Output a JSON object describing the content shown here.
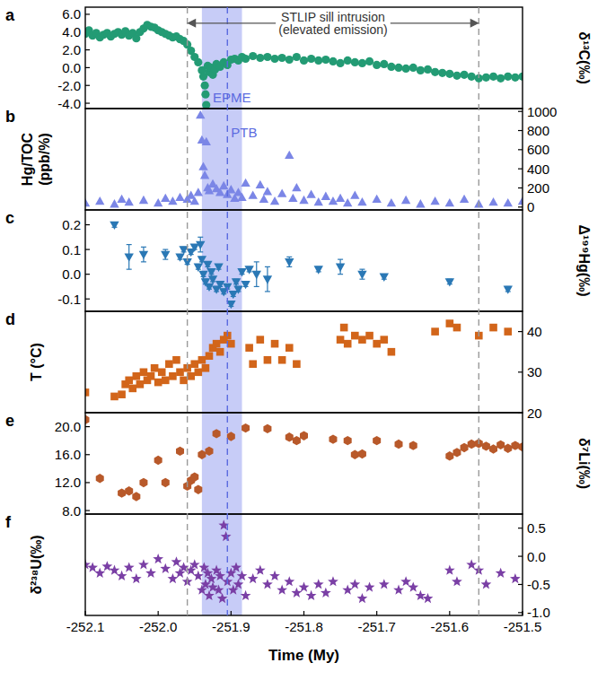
{
  "chart_data": [
    {
      "type": "scatter",
      "title": "a",
      "y_label": "δ¹³C(‰)",
      "color": "#239b74",
      "marker": "circle",
      "xlim": [
        -252.1,
        -251.5
      ],
      "ylim": [
        -4.6,
        6.8
      ],
      "yticks": [
        {
          "value": -4,
          "label": "-4.0"
        },
        {
          "value": -2,
          "label": "-2.0"
        },
        {
          "value": 0,
          "label": "0.0"
        },
        {
          "value": 2,
          "label": "2.0"
        },
        {
          "value": 4,
          "label": "4.0"
        },
        {
          "value": 6,
          "label": "6.0"
        }
      ],
      "band": [
        -251.94,
        -251.885
      ],
      "vlines": [
        -251.96,
        -251.56
      ],
      "boundary": -251.905,
      "annotations": [
        {
          "text": "STLIP sill intrusion",
          "x": -251.76,
          "y": 5.7
        },
        {
          "text": "(elevated emission)",
          "x": -251.76,
          "y": 4.3
        },
        {
          "text": "EPME",
          "x": -251.925,
          "y": -3.3
        }
      ],
      "x": [
        -252.1,
        -252.095,
        -252.09,
        -252.085,
        -252.08,
        -252.075,
        -252.07,
        -252.065,
        -252.06,
        -252.055,
        -252.05,
        -252.045,
        -252.04,
        -252.035,
        -252.03,
        -252.025,
        -252.02,
        -252.015,
        -252.01,
        -252.005,
        -252.0,
        -251.995,
        -251.99,
        -251.985,
        -251.98,
        -251.975,
        -251.97,
        -251.965,
        -251.96,
        -251.955,
        -251.95,
        -251.945,
        -251.94,
        -251.938,
        -251.936,
        -251.935,
        -251.934,
        -251.932,
        -251.93,
        -251.928,
        -251.925,
        -251.922,
        -251.92,
        -251.915,
        -251.91,
        -251.905,
        -251.9,
        -251.895,
        -251.89,
        -251.885,
        -251.88,
        -251.87,
        -251.86,
        -251.85,
        -251.84,
        -251.83,
        -251.82,
        -251.81,
        -251.8,
        -251.79,
        -251.78,
        -251.77,
        -251.76,
        -251.75,
        -251.74,
        -251.73,
        -251.72,
        -251.71,
        -251.7,
        -251.69,
        -251.68,
        -251.67,
        -251.66,
        -251.65,
        -251.64,
        -251.63,
        -251.62,
        -251.61,
        -251.6,
        -251.59,
        -251.58,
        -251.57,
        -251.56,
        -251.55,
        -251.54,
        -251.53,
        -251.52,
        -251.51,
        -251.5
      ],
      "values": [
        3.8,
        4.2,
        3.6,
        3.9,
        3.4,
        3.7,
        3.9,
        3.5,
        3.8,
        4.0,
        3.7,
        4.1,
        3.6,
        3.9,
        3.3,
        4.0,
        4.4,
        4.8,
        4.6,
        4.5,
        4.2,
        4.0,
        3.8,
        3.6,
        3.4,
        3.5,
        3.2,
        3.0,
        2.6,
        1.9,
        1.2,
        0.6,
        -0.3,
        -1.0,
        -2.0,
        -3.0,
        -4.2,
        0.2,
        -0.5,
        0.0,
        -0.8,
        -0.2,
        0.4,
        0.1,
        0.6,
        0.3,
        0.9,
        1.0,
        0.8,
        1.2,
        1.0,
        1.3,
        1.1,
        1.2,
        1.0,
        1.1,
        0.9,
        1.2,
        0.8,
        1.0,
        0.8,
        0.9,
        0.7,
        0.5,
        0.8,
        0.6,
        0.5,
        0.7,
        0.3,
        0.4,
        0.1,
        0.0,
        -0.1,
        0.0,
        -0.3,
        -0.2,
        -0.5,
        -0.6,
        -0.7,
        -0.9,
        -0.8,
        -1.0,
        -1.2,
        -1.1,
        -1.0,
        -1.2,
        -1.0,
        -1.1,
        -1.0
      ]
    },
    {
      "type": "scatter",
      "title": "b",
      "y_label": [
        "Hg/TOC",
        "(ppb/%)"
      ],
      "color": "#7b86e6",
      "marker": "triangle-up",
      "xlim": [
        -252.1,
        -251.5
      ],
      "ylim": [
        -30,
        1030
      ],
      "yticks": [
        0,
        200,
        400,
        600,
        800,
        1000
      ],
      "annotations": [
        {
          "text": "PTB",
          "x": -251.9,
          "y": 780
        }
      ],
      "x": [
        -252.1,
        -252.08,
        -252.06,
        -252.05,
        -252.04,
        -252.02,
        -252.0,
        -251.99,
        -251.98,
        -251.97,
        -251.96,
        -251.955,
        -251.95,
        -251.945,
        -251.942,
        -251.94,
        -251.938,
        -251.936,
        -251.934,
        -251.932,
        -251.93,
        -251.925,
        -251.92,
        -251.915,
        -251.91,
        -251.905,
        -251.9,
        -251.895,
        -251.89,
        -251.885,
        -251.88,
        -251.87,
        -251.86,
        -251.855,
        -251.85,
        -251.84,
        -251.83,
        -251.82,
        -251.815,
        -251.81,
        -251.8,
        -251.79,
        -251.78,
        -251.77,
        -251.76,
        -251.75,
        -251.74,
        -251.73,
        -251.72,
        -251.7,
        -251.68,
        -251.66,
        -251.64,
        -251.62,
        -251.6,
        -251.58,
        -251.56,
        -251.54,
        -251.52,
        -251.5
      ],
      "values": [
        40,
        60,
        30,
        80,
        50,
        70,
        40,
        90,
        60,
        100,
        80,
        120,
        60,
        150,
        960,
        700,
        420,
        330,
        680,
        200,
        170,
        240,
        190,
        150,
        220,
        130,
        180,
        90,
        150,
        100,
        250,
        120,
        230,
        80,
        160,
        60,
        140,
        540,
        90,
        200,
        70,
        130,
        50,
        110,
        60,
        90,
        40,
        120,
        50,
        80,
        40,
        70,
        30,
        60,
        40,
        80,
        30,
        50,
        40,
        60
      ]
    },
    {
      "type": "scatter",
      "title": "c",
      "y_label": "Δ¹⁹⁹Hg(‰)",
      "color": "#2a78b5",
      "marker": "triangle-down",
      "xlim": [
        -252.1,
        -251.5
      ],
      "ylim": [
        -0.15,
        0.26
      ],
      "yticks": [
        -0.1,
        {
          "value": 0,
          "label": "0.0"
        },
        0.1,
        0.2
      ],
      "x": [
        -252.06,
        -252.04,
        -252.02,
        -251.99,
        -251.97,
        -251.965,
        -251.96,
        -251.955,
        -251.95,
        -251.945,
        -251.942,
        -251.94,
        -251.938,
        -251.935,
        -251.932,
        -251.93,
        -251.927,
        -251.925,
        -251.92,
        -251.917,
        -251.915,
        -251.91,
        -251.905,
        -251.9,
        -251.897,
        -251.893,
        -251.89,
        -251.885,
        -251.88,
        -251.875,
        -251.865,
        -251.85,
        -251.82,
        -251.78,
        -251.75,
        -251.72,
        -251.69,
        -251.6,
        -251.52
      ],
      "values": [
        0.2,
        0.07,
        0.08,
        0.08,
        0.07,
        0.1,
        0.05,
        0.09,
        0.11,
        0.03,
        0.12,
        0.06,
        0.0,
        -0.03,
        0.04,
        -0.05,
        0.01,
        -0.02,
        -0.06,
        0.03,
        -0.04,
        -0.07,
        -0.05,
        -0.12,
        -0.08,
        -0.03,
        -0.06,
        0.01,
        -0.04,
        0.02,
        0.0,
        -0.02,
        0.05,
        0.02,
        0.03,
        0.0,
        -0.01,
        -0.03,
        -0.06
      ],
      "errors": [
        0.01,
        0.05,
        0.03,
        0.02,
        0.01,
        0.01,
        0.01,
        0.01,
        0.01,
        0.01,
        0.03,
        0.01,
        0.01,
        0.01,
        0.01,
        0.01,
        0.01,
        0.01,
        0.01,
        0.01,
        0.01,
        0.01,
        0.01,
        0.01,
        0.01,
        0.01,
        0.01,
        0.01,
        0.01,
        0.01,
        0.05,
        0.05,
        0.02,
        0.01,
        0.03,
        0.02,
        0.01,
        0.01,
        0.01
      ]
    },
    {
      "type": "scatter",
      "title": "d",
      "y_label": "T (°C)",
      "color": "#d2651a",
      "marker": "square",
      "xlim": [
        -252.1,
        -251.5
      ],
      "ylim": [
        20,
        45
      ],
      "yticks": [
        20,
        30,
        40
      ],
      "x": [
        -252.1,
        -252.06,
        -252.05,
        -252.045,
        -252.04,
        -252.035,
        -252.03,
        -252.025,
        -252.02,
        -252.015,
        -252.01,
        -252.005,
        -252.0,
        -251.995,
        -251.99,
        -251.985,
        -251.98,
        -251.975,
        -251.97,
        -251.965,
        -251.96,
        -251.955,
        -251.95,
        -251.945,
        -251.94,
        -251.935,
        -251.93,
        -251.925,
        -251.92,
        -251.915,
        -251.91,
        -251.905,
        -251.9,
        -251.875,
        -251.87,
        -251.86,
        -251.85,
        -251.84,
        -251.83,
        -251.82,
        -251.81,
        -251.75,
        -251.745,
        -251.74,
        -251.73,
        -251.72,
        -251.71,
        -251.7,
        -251.69,
        -251.68,
        -251.62,
        -251.6,
        -251.59,
        -251.56,
        -251.54,
        -251.52
      ],
      "values": [
        25,
        24,
        24.5,
        27,
        28,
        26,
        29,
        27,
        30,
        28,
        29,
        31,
        27.5,
        30,
        28,
        32,
        29,
        33,
        30,
        28,
        31,
        29,
        32,
        30,
        33,
        31,
        34,
        36,
        37,
        35,
        38,
        39,
        37,
        36,
        32,
        38,
        33,
        37,
        33,
        36,
        32,
        38,
        41,
        37,
        39,
        38,
        39,
        37,
        38,
        35,
        40,
        42,
        41,
        39,
        41,
        40
      ]
    },
    {
      "type": "scatter",
      "title": "e",
      "y_label": "δ⁷Li(‰)",
      "color": "#b8592a",
      "marker": "hexagon",
      "xlim": [
        -252.1,
        -251.5
      ],
      "ylim": [
        7.5,
        22
      ],
      "yticks": [
        {
          "value": 8,
          "label": "8.0"
        },
        {
          "value": 12,
          "label": "12.0"
        },
        {
          "value": 16,
          "label": "16.0"
        },
        {
          "value": 20,
          "label": "20.0"
        }
      ],
      "x": [
        -252.1,
        -252.08,
        -252.05,
        -252.04,
        -252.03,
        -252.02,
        -252.0,
        -251.99,
        -251.97,
        -251.96,
        -251.955,
        -251.95,
        -251.945,
        -251.94,
        -251.93,
        -251.92,
        -251.9,
        -251.88,
        -251.85,
        -251.82,
        -251.81,
        -251.8,
        -251.76,
        -251.74,
        -251.73,
        -251.72,
        -251.7,
        -251.67,
        -251.65,
        -251.6,
        -251.59,
        -251.58,
        -251.57,
        -251.56,
        -251.55,
        -251.54,
        -251.53,
        -251.52,
        -251.51,
        -251.5
      ],
      "values": [
        21.0,
        12.6,
        10.5,
        10.8,
        10.0,
        12.0,
        15.2,
        12.0,
        16.5,
        11.5,
        12.3,
        12.8,
        11.0,
        16.0,
        16.5,
        19.0,
        18.6,
        19.8,
        19.7,
        18.5,
        18.0,
        18.7,
        18.2,
        18.0,
        16.0,
        16.1,
        18.0,
        17.5,
        17.3,
        15.8,
        16.3,
        17.0,
        17.5,
        17.6,
        17.2,
        16.8,
        17.4,
        16.9,
        17.3,
        17.1
      ]
    },
    {
      "type": "scatter",
      "title": "f",
      "y_label": "δ²³⁸U(‰)",
      "color": "#7a3fa5",
      "marker": "star",
      "xlim": [
        -252.1,
        -251.5
      ],
      "ylim": [
        -1.05,
        0.75
      ],
      "yticks": [
        {
          "value": -1,
          "label": "-1.0"
        },
        -0.5,
        {
          "value": 0,
          "label": "0.0"
        },
        0.5
      ],
      "x_label": "Time (My)",
      "xticks": [
        -252.1,
        {
          "value": -252.0,
          "label": "-252.0"
        },
        -251.9,
        -251.8,
        -251.7,
        -251.6,
        -251.5
      ],
      "x": [
        -252.1,
        -252.09,
        -252.08,
        -252.07,
        -252.06,
        -252.05,
        -252.04,
        -252.03,
        -252.02,
        -252.01,
        -252.0,
        -251.99,
        -251.98,
        -251.975,
        -251.97,
        -251.965,
        -251.96,
        -251.955,
        -251.95,
        -251.945,
        -251.94,
        -251.937,
        -251.935,
        -251.932,
        -251.93,
        -251.927,
        -251.925,
        -251.92,
        -251.917,
        -251.915,
        -251.912,
        -251.91,
        -251.907,
        -251.905,
        -251.9,
        -251.897,
        -251.893,
        -251.89,
        -251.885,
        -251.88,
        -251.87,
        -251.86,
        -251.85,
        -251.84,
        -251.83,
        -251.82,
        -251.81,
        -251.8,
        -251.79,
        -251.78,
        -251.77,
        -251.76,
        -251.74,
        -251.73,
        -251.72,
        -251.71,
        -251.69,
        -251.67,
        -251.66,
        -251.65,
        -251.64,
        -251.63,
        -251.6,
        -251.59,
        -251.57,
        -251.56,
        -251.55,
        -251.53,
        -251.51
      ],
      "values": [
        -0.15,
        -0.2,
        -0.3,
        -0.18,
        -0.25,
        -0.35,
        -0.2,
        -0.4,
        -0.15,
        -0.3,
        -0.05,
        -0.22,
        -0.4,
        -0.1,
        -0.3,
        -0.2,
        -0.45,
        -0.25,
        -0.15,
        -0.35,
        -0.6,
        -0.2,
        -0.5,
        -0.3,
        -0.7,
        -0.4,
        -0.55,
        -0.25,
        -0.6,
        -0.35,
        -0.75,
        0.55,
        0.35,
        -0.45,
        -0.3,
        -0.6,
        -0.2,
        -0.5,
        -0.35,
        -0.7,
        -0.4,
        -0.25,
        -0.5,
        -0.35,
        -0.6,
        -0.45,
        -0.65,
        -0.55,
        -0.7,
        -0.5,
        -0.65,
        -0.45,
        -0.6,
        -0.5,
        -0.75,
        -0.55,
        -0.5,
        -0.6,
        -0.45,
        -0.55,
        -0.7,
        -0.75,
        -0.25,
        -0.45,
        -0.15,
        -0.25,
        -0.5,
        -0.3,
        -0.4
      ]
    }
  ]
}
